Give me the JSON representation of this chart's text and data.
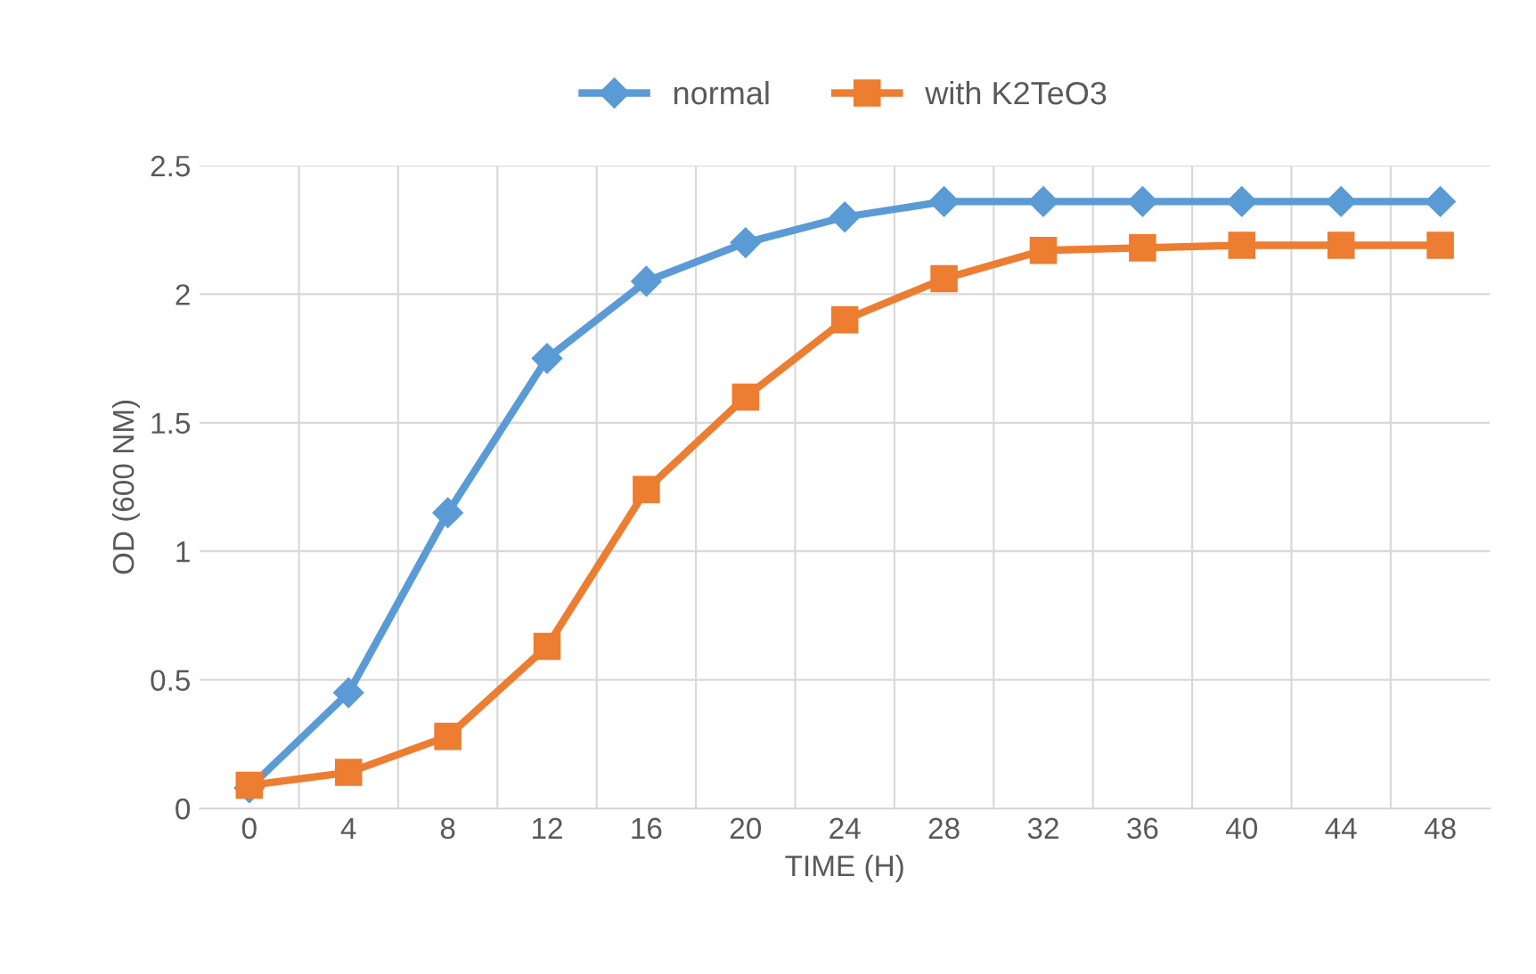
{
  "chart_data": {
    "type": "line",
    "xlabel": "TIME (H)",
    "ylabel": "OD (600 NM)",
    "categories": [
      "0",
      "4",
      "8",
      "12",
      "16",
      "20",
      "24",
      "28",
      "32",
      "36",
      "40",
      "44",
      "48"
    ],
    "series": [
      {
        "name": "normal",
        "color": "#5b9bd5",
        "marker": "diamond",
        "values": [
          0.08,
          0.45,
          1.15,
          1.75,
          2.05,
          2.2,
          2.3,
          2.36,
          2.36,
          2.36,
          2.36,
          2.36,
          2.36
        ]
      },
      {
        "name": "with K2TeO3",
        "color": "#ed7d31",
        "marker": "square",
        "values": [
          0.09,
          0.14,
          0.28,
          0.63,
          1.24,
          1.6,
          1.9,
          2.06,
          2.17,
          2.18,
          2.19,
          2.19,
          2.19
        ]
      }
    ],
    "ylim": [
      0,
      2.5
    ],
    "yticks": [
      0,
      0.5,
      1,
      1.5,
      2,
      2.5
    ],
    "grid": true,
    "legend": "top"
  }
}
